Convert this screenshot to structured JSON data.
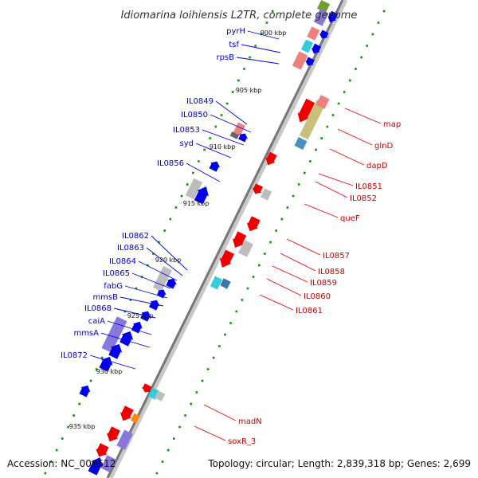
{
  "title": "Idiomarina loihiensis L2TR, complete genome",
  "footer": {
    "accession": "Accession: NC_006512",
    "summary": "Topology: circular; Length: 2,839,318 bp; Genes: 2,699"
  },
  "colors": {
    "backbone": "#777777",
    "reverse_gene": "#0000ee",
    "forward_gene": "#ee0000",
    "left_label": "#0000cc",
    "right_label": "#cc0000",
    "dots": "#009900"
  },
  "ticks": [
    {
      "label": "900 kbp"
    },
    {
      "label": "905 kbp"
    },
    {
      "label": "910 kbp"
    },
    {
      "label": "915 kbp"
    },
    {
      "label": "920 kbp"
    },
    {
      "label": "925 kbp"
    },
    {
      "label": "930 kbp"
    },
    {
      "label": "935 kbp"
    }
  ],
  "left_genes": [
    {
      "label": "pyrH"
    },
    {
      "label": "tsf"
    },
    {
      "label": "rpsB"
    },
    {
      "label": "IL0849"
    },
    {
      "label": "IL0850"
    },
    {
      "label": "IL0853"
    },
    {
      "label": "syd"
    },
    {
      "label": "IL0856"
    },
    {
      "label": "IL0862"
    },
    {
      "label": "IL0863"
    },
    {
      "label": "IL0864"
    },
    {
      "label": "IL0865"
    },
    {
      "label": "fabG"
    },
    {
      "label": "mmsB"
    },
    {
      "label": "IL0868"
    },
    {
      "label": "caiA"
    },
    {
      "label": "mmsA"
    },
    {
      "label": "IL0872"
    }
  ],
  "right_genes": [
    {
      "label": "map"
    },
    {
      "label": "glnD"
    },
    {
      "label": "dapD"
    },
    {
      "label": "IL0851"
    },
    {
      "label": "IL0852"
    },
    {
      "label": "queF"
    },
    {
      "label": "IL0857"
    },
    {
      "label": "IL0858"
    },
    {
      "label": "IL0859"
    },
    {
      "label": "IL0860"
    },
    {
      "label": "IL0861"
    },
    {
      "label": "madN"
    },
    {
      "label": "soxR_3"
    }
  ]
}
